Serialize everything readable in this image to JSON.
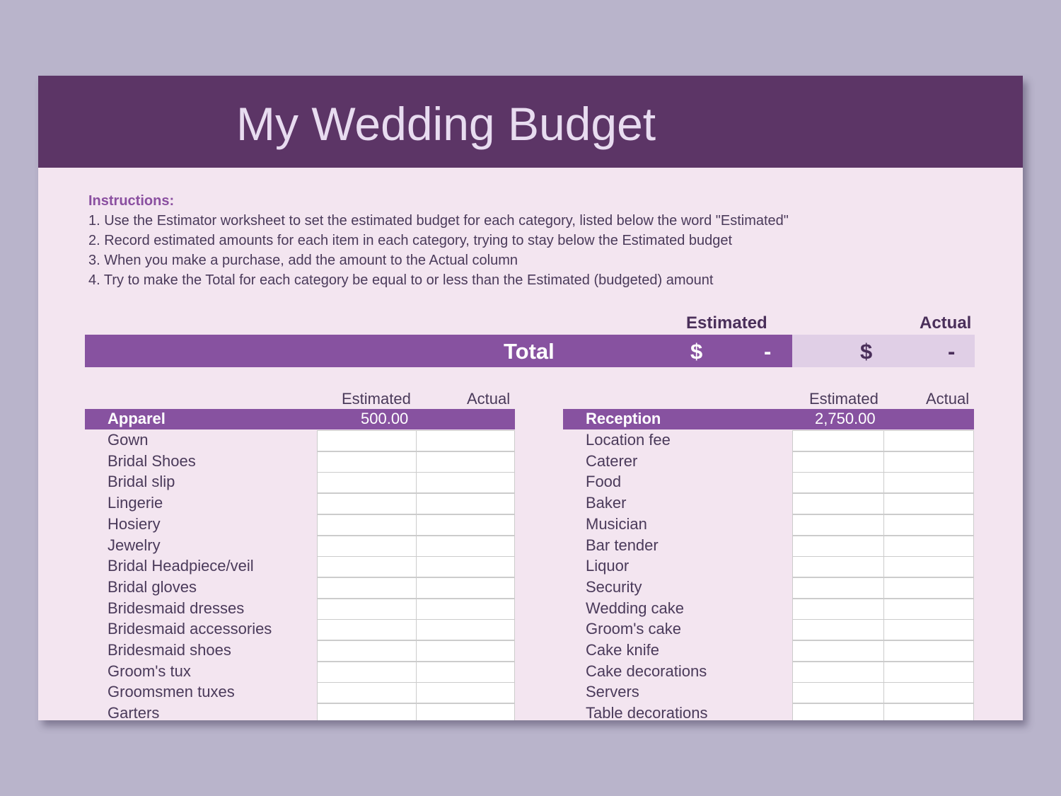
{
  "title": "My Wedding Budget",
  "instructions": {
    "heading": "Instructions:",
    "lines": [
      "1. Use the Estimator worksheet to set the estimated budget for each category, listed below the word \"Estimated\"",
      "2. Record estimated amounts for each item in each category, trying to stay below the Estimated budget",
      "3. When you make a purchase, add the amount to the Actual column",
      "4. Try to make the Total for each category be equal to or less than the Estimated (budgeted) amount"
    ]
  },
  "total": {
    "estimated_label": "Estimated",
    "actual_label": "Actual",
    "label": "Total",
    "est_currency": "$",
    "est_value": "-",
    "act_currency": "$",
    "act_value": "-"
  },
  "colors": {
    "header": "#5c3566",
    "accent": "#8752a0",
    "background": "#f3e5f0"
  },
  "tables": [
    {
      "estimated_label": "Estimated",
      "actual_label": "Actual",
      "category": "Apparel",
      "estimated": "500.00",
      "items": [
        "Gown",
        "Bridal Shoes",
        "Bridal slip",
        "Lingerie",
        "Hosiery",
        "Jewelry",
        "Bridal Headpiece/veil",
        "Bridal gloves",
        "Bridesmaid dresses",
        "Bridesmaid accessories",
        "Bridesmaid shoes",
        "Groom's tux",
        "Groomsmen tuxes",
        "Garters"
      ]
    },
    {
      "estimated_label": "Estimated",
      "actual_label": "Actual",
      "category": "Reception",
      "estimated": "2,750.00",
      "items": [
        "Location fee",
        "Caterer",
        "Food",
        "Baker",
        "Musician",
        "Bar tender",
        "Liquor",
        "Security",
        "Wedding cake",
        "Groom's cake",
        "Cake knife",
        "Cake decorations",
        "Servers",
        "Table decorations"
      ]
    }
  ]
}
